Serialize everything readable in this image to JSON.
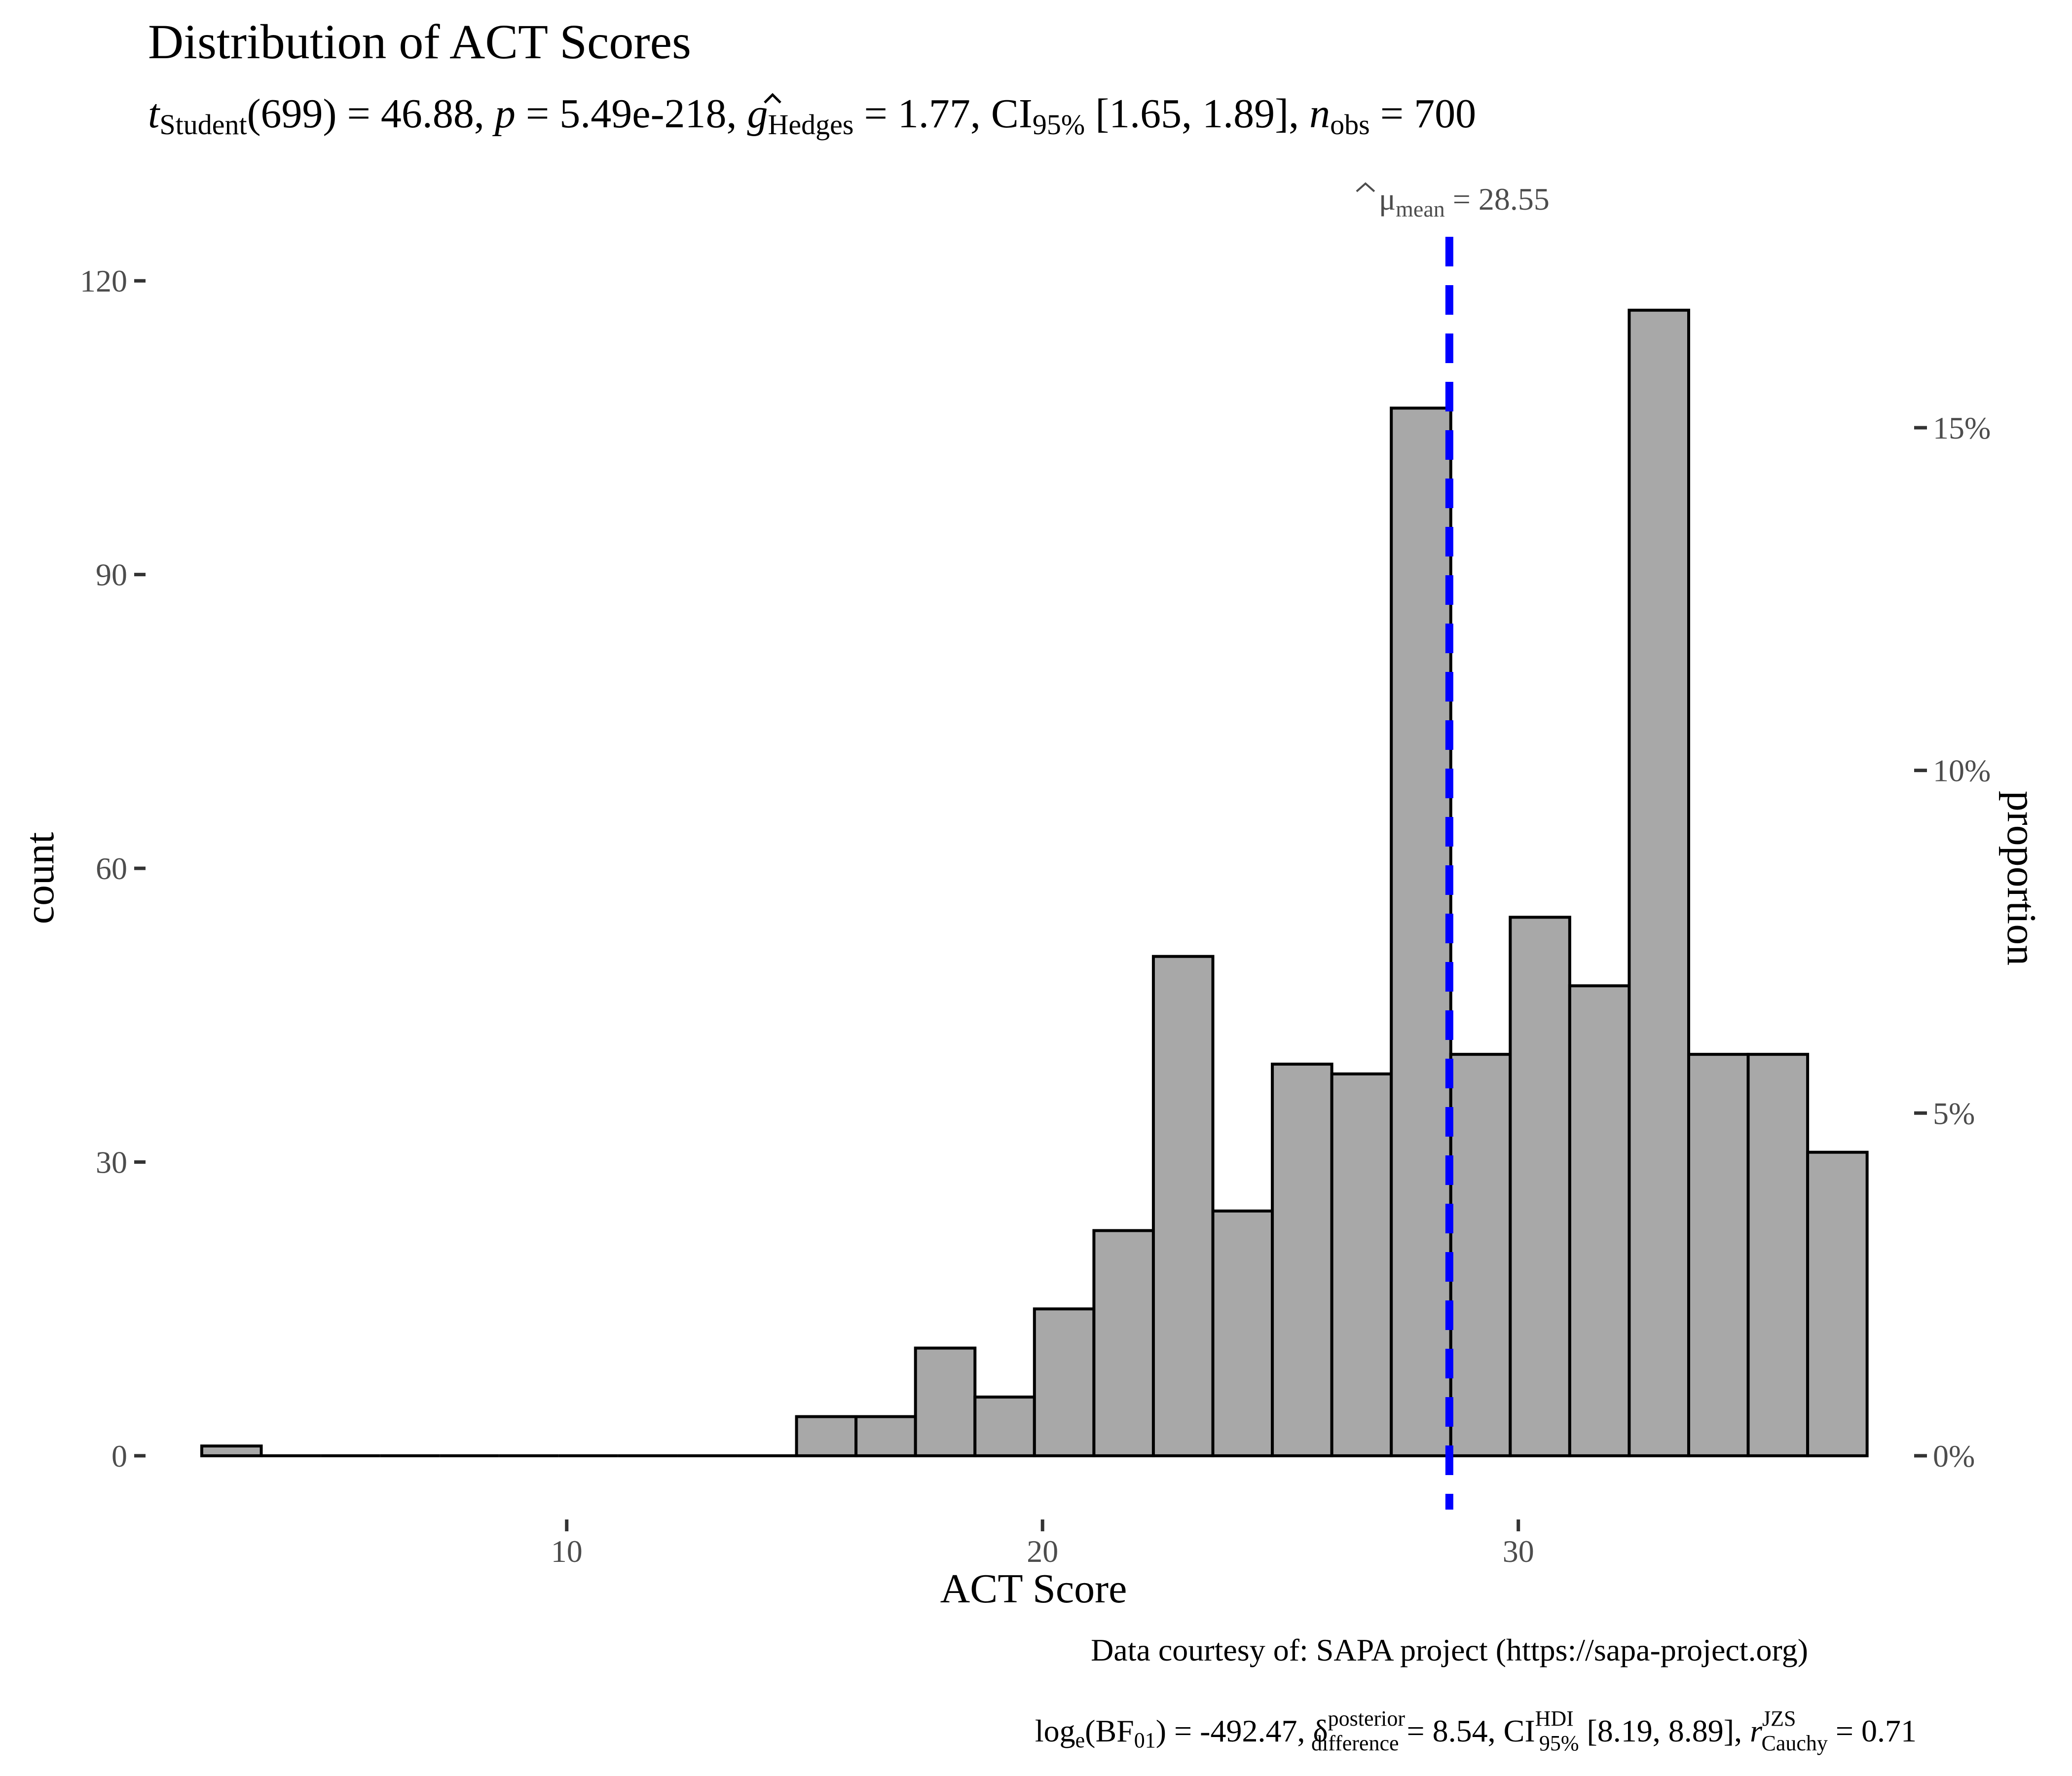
{
  "chart_data": {
    "type": "histogram",
    "title": "Distribution of ACT Scores",
    "subtitle": {
      "t_label": "t",
      "t_sub": "Student",
      "df_text": "(699) = 46.88, ",
      "p_label": "p",
      "p_text": " = 5.49e-218, ",
      "g_label": "g",
      "g_sub": "Hedges",
      "g_text": " = 1.77, CI",
      "ci_sub": "95%",
      "ci_text": " [1.65, 1.89], ",
      "n_label": "n",
      "n_sub": "obs",
      "n_text": " = 700"
    },
    "xlabel": "ACT Score",
    "ylabel": "count",
    "ylabel_right": "proportion",
    "caption_line1": "Data courtesy of: SAPA project (https://sapa-project.org)",
    "caption_line2": {
      "log_text": "log",
      "log_sub": "e",
      "bf_text": "(BF",
      "bf_sub": "01",
      "bf_val": ") = -492.47, ",
      "delta": "δ",
      "delta_sup": "posterior",
      "delta_sub": "difference",
      "delta_val": " = 8.54, CI",
      "ci_sup": "HDI",
      "ci_sub": "95%",
      "ci_val": " [8.19, 8.89], ",
      "r_label": "r",
      "r_sup": "JZS",
      "r_sub": "Cauchy",
      "r_val": " = 0.71"
    },
    "mean_annotation": {
      "symbol": "μ",
      "sub": "mean",
      "text": " = 28.55",
      "value": 28.55
    },
    "x_range": [
      1.2,
      37.8
    ],
    "y_range": [
      -6,
      125
    ],
    "x_ticks": [
      10,
      20,
      30
    ],
    "x_tick_labels": [
      "10",
      "20",
      "30"
    ],
    "y_ticks": [
      0,
      30,
      60,
      90,
      120
    ],
    "y_tick_labels": [
      "0",
      "30",
      "60",
      "90",
      "120"
    ],
    "y2_ticks": [
      0,
      0.05,
      0.1,
      0.15
    ],
    "y2_tick_labels": [
      "0%",
      "5%",
      "10%",
      "15%"
    ],
    "bin_width": 1.25,
    "bins_start": 2.33,
    "counts": [
      1,
      0,
      0,
      0,
      0,
      0,
      0,
      0,
      0,
      0,
      4,
      4,
      11,
      6,
      15,
      23,
      51,
      25,
      40,
      39,
      107,
      41,
      55,
      48,
      117,
      41,
      41,
      31
    ],
    "n_total": 700,
    "colors": {
      "bar_fill": "#a8a8a8",
      "bar_stroke": "#000000",
      "mean_line": "#0000ff",
      "tick_text": "#4d4d4d",
      "text": "#000000"
    }
  }
}
